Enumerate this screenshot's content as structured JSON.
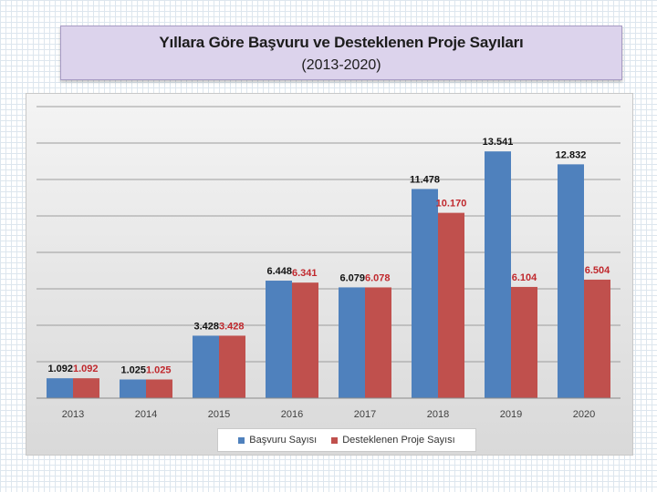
{
  "title": {
    "main": "Yıllara Göre Başvuru ve Desteklenen Proje Sayıları",
    "sub": "(2013-2020)"
  },
  "colors": {
    "basvuru": "#4f81bd",
    "desteklenen": "#c0504d",
    "label_dark": "#111111",
    "label_red": "#c0282d"
  },
  "chart_data": {
    "type": "bar",
    "categories": [
      "2013",
      "2014",
      "2015",
      "2016",
      "2017",
      "2018",
      "2019",
      "2020"
    ],
    "series": [
      {
        "name": "Başvuru Sayısı",
        "values": [
          1092,
          1025,
          3428,
          6448,
          6079,
          11478,
          13541,
          12832
        ],
        "labels": [
          "1.092",
          "1.025",
          "3.428",
          "6.448",
          "6.079",
          "11.478",
          "13.541",
          "12.832"
        ]
      },
      {
        "name": "Desteklenen Proje Sayısı",
        "values": [
          1092,
          1025,
          3428,
          6341,
          6078,
          10170,
          6104,
          6504
        ],
        "labels": [
          "1.092",
          "1.025",
          "3.428",
          "6.341",
          "6.078",
          "10.170",
          "6.104",
          "6.504"
        ]
      }
    ],
    "ylim": [
      0,
      16000
    ],
    "grid": true,
    "legend_position": "bottom"
  }
}
